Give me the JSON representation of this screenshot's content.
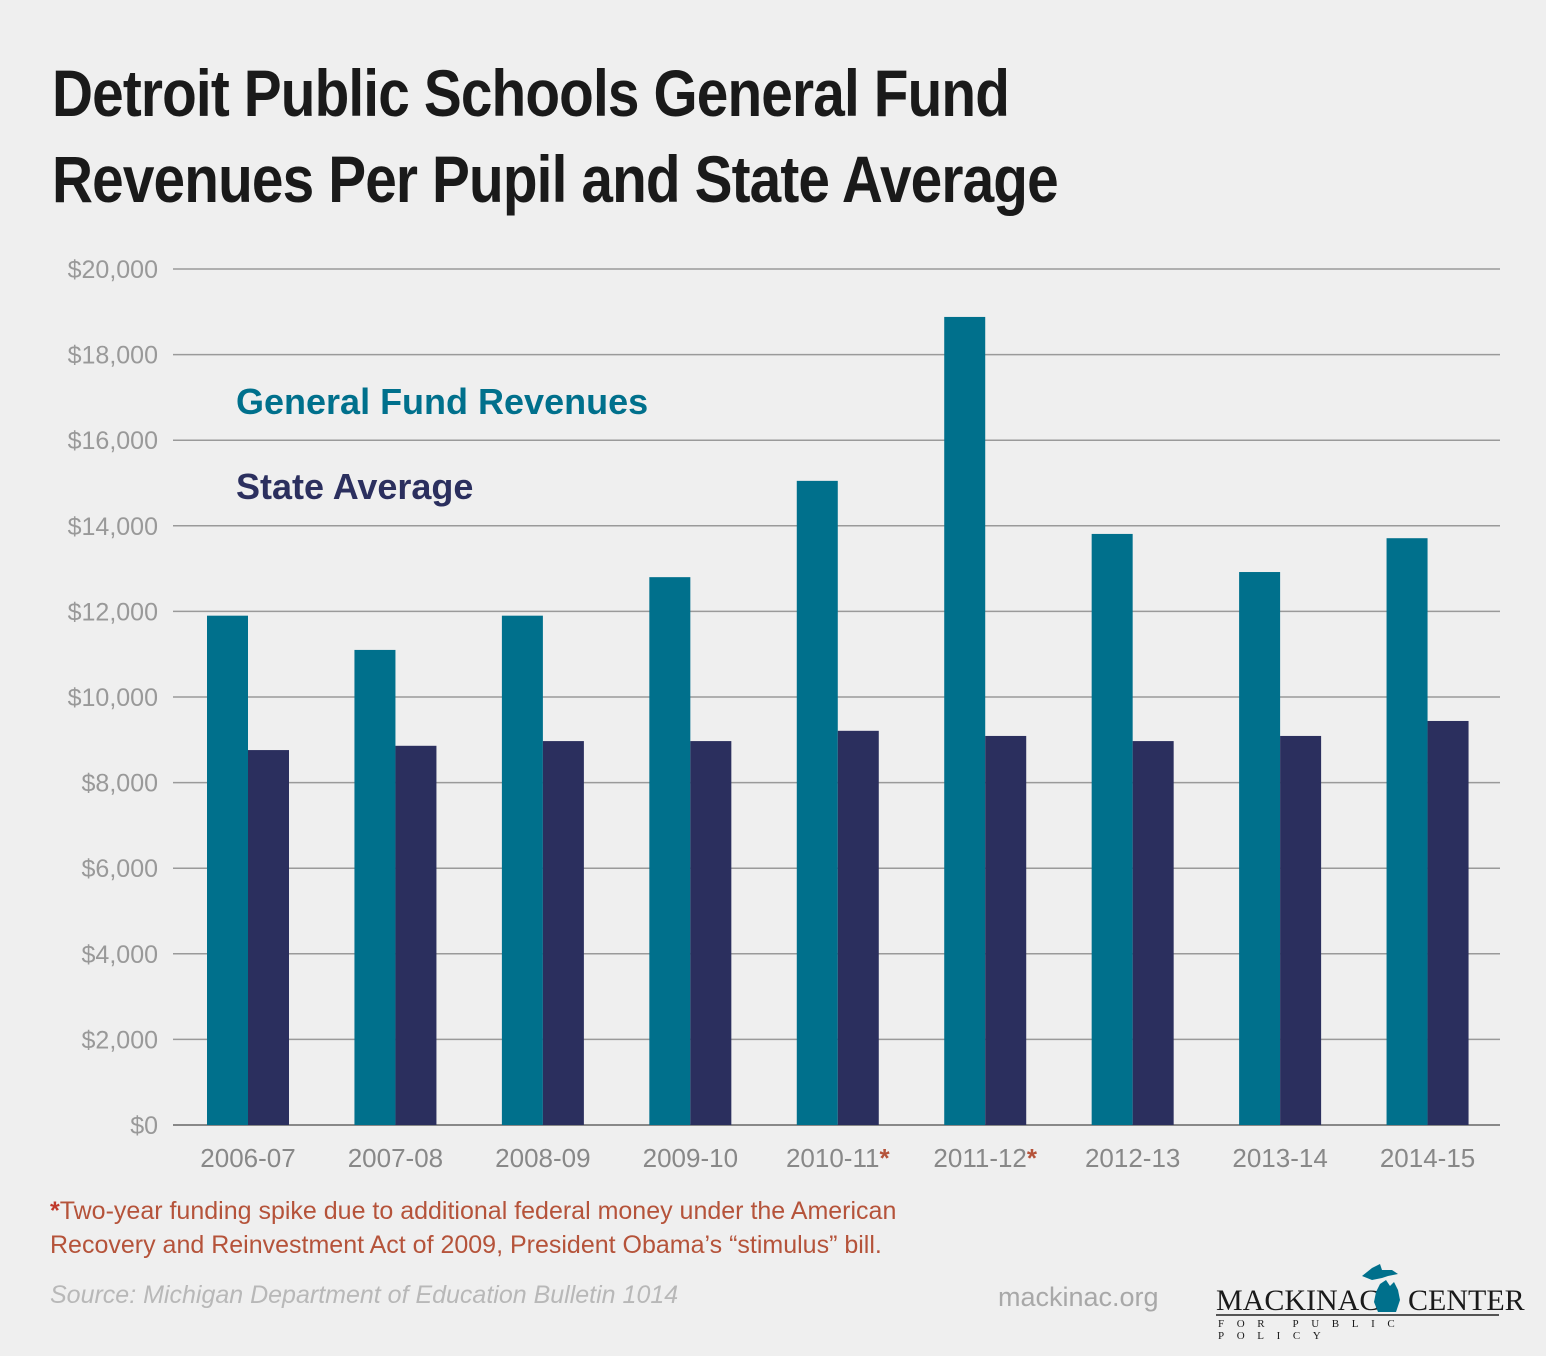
{
  "title": "Detroit Public Schools General Fund Revenues Per Pupil and State Average",
  "chart_data": {
    "type": "bar",
    "title": "Detroit Public Schools General Fund Revenues Per Pupil and State Average",
    "categories": [
      "2006-07",
      "2007-08",
      "2008-09",
      "2009-10",
      "2010-11*",
      "2011-12*",
      "2012-13",
      "2013-14",
      "2014-15"
    ],
    "series": [
      {
        "name": "General Fund Revenues",
        "color": "#00708c",
        "values": [
          11900,
          11100,
          11900,
          12800,
          15050,
          18880,
          13810,
          12920,
          13710
        ]
      },
      {
        "name": "State Average",
        "color": "#2b2f5e",
        "values": [
          8760,
          8860,
          8970,
          8970,
          9210,
          9090,
          8970,
          9090,
          9440
        ]
      }
    ],
    "ylim": [
      0,
      20000
    ],
    "yticks": [
      "$0",
      "$2,000",
      "$4,000",
      "$6,000",
      "$8,000",
      "$10,000",
      "$12,000",
      "$14,000",
      "$16,000",
      "$18,000",
      "$20,000"
    ],
    "xlabel": "",
    "ylabel": "",
    "grid": true,
    "legend": "top-left",
    "asterisk_color": "#b5533a"
  },
  "footnote": "*Two-year funding spike due to additional federal money under the American Recovery and Reinvestment Act of 2009, President Obama’s “stimulus” bill.",
  "source": "Source: Michigan Department of Education Bulletin 1014",
  "website": "mackinac.org",
  "logo": {
    "name_left": "MACKINAC",
    "name_right": "CENTER",
    "tagline": "FOR PUBLIC POLICY",
    "icon": "michigan-map-icon"
  }
}
